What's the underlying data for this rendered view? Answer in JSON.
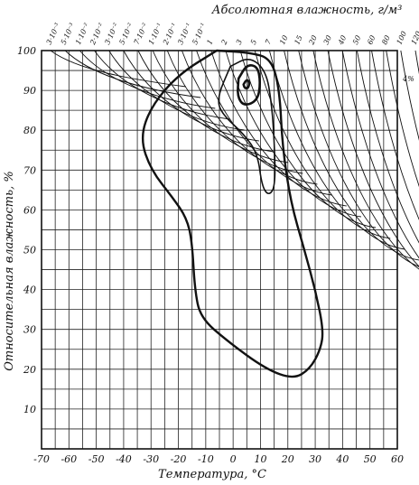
{
  "chart_data": {
    "type": "line",
    "title": "Абсолютная влажность, г/м³",
    "xlabel": "Температура, °С",
    "ylabel": "Относительная влажность, %",
    "xlim": [
      -70,
      60
    ],
    "ylim": [
      0,
      100
    ],
    "grid": true,
    "x_ticks": [
      -70,
      -60,
      -50,
      -40,
      -30,
      -20,
      -10,
      0,
      10,
      20,
      30,
      40,
      50,
      60
    ],
    "y_ticks": [
      10,
      20,
      30,
      40,
      50,
      60,
      70,
      80,
      90,
      100
    ],
    "absolute_humidity_ticks": [
      "3·10⁻³",
      "5·10⁻³",
      "1·10⁻²",
      "2·10⁻²",
      "3·10⁻²",
      "5·10⁻²",
      "7·10⁻²",
      "1·10⁻¹",
      "2·10⁻¹",
      "3·10⁻¹",
      "5·10⁻¹",
      "1",
      "2",
      "3",
      "5",
      "7",
      "10",
      "15",
      "20",
      "30",
      "40",
      "50",
      "60",
      "80",
      "100",
      "120"
    ],
    "right_label": "4%",
    "contours": [
      {
        "level": "outer",
        "points": [
          [
            -6,
            100
          ],
          [
            6,
            99.5
          ],
          [
            14,
            98
          ],
          [
            17,
            90
          ],
          [
            18,
            76
          ],
          [
            21,
            62
          ],
          [
            26,
            50
          ],
          [
            30,
            40
          ],
          [
            33,
            30
          ],
          [
            32,
            25
          ],
          [
            28,
            20
          ],
          [
            22,
            17.5
          ],
          [
            12,
            20
          ],
          [
            -2,
            27
          ],
          [
            -12,
            33
          ],
          [
            -14,
            40
          ],
          [
            -15,
            52
          ],
          [
            -17,
            58
          ],
          [
            -22,
            63
          ],
          [
            -30,
            70
          ],
          [
            -34,
            78
          ],
          [
            -30,
            86
          ],
          [
            -20,
            94
          ],
          [
            -6,
            100
          ]
        ]
      },
      {
        "level": "middle",
        "points": [
          [
            -1,
            96
          ],
          [
            6,
            98.5
          ],
          [
            12,
            95
          ],
          [
            14,
            87
          ],
          [
            15,
            78
          ],
          [
            15.5,
            66
          ],
          [
            13,
            63.5
          ],
          [
            10.5,
            66
          ],
          [
            9,
            74
          ],
          [
            4,
            79
          ],
          [
            -4,
            84
          ],
          [
            -6,
            88
          ],
          [
            -1,
            96
          ]
        ]
      },
      {
        "level": "inner",
        "points": [
          [
            2,
            93
          ],
          [
            5,
            96.5
          ],
          [
            9,
            96
          ],
          [
            10,
            92
          ],
          [
            9,
            87.5
          ],
          [
            4,
            86
          ],
          [
            1.5,
            88.5
          ],
          [
            2,
            93
          ]
        ]
      },
      {
        "level": "core",
        "points": [
          [
            3.8,
            91.5
          ],
          [
            5,
            92.8
          ],
          [
            6,
            92
          ],
          [
            5.5,
            90.5
          ],
          [
            4.2,
            90.6
          ],
          [
            3.8,
            91.5
          ]
        ]
      }
    ]
  }
}
